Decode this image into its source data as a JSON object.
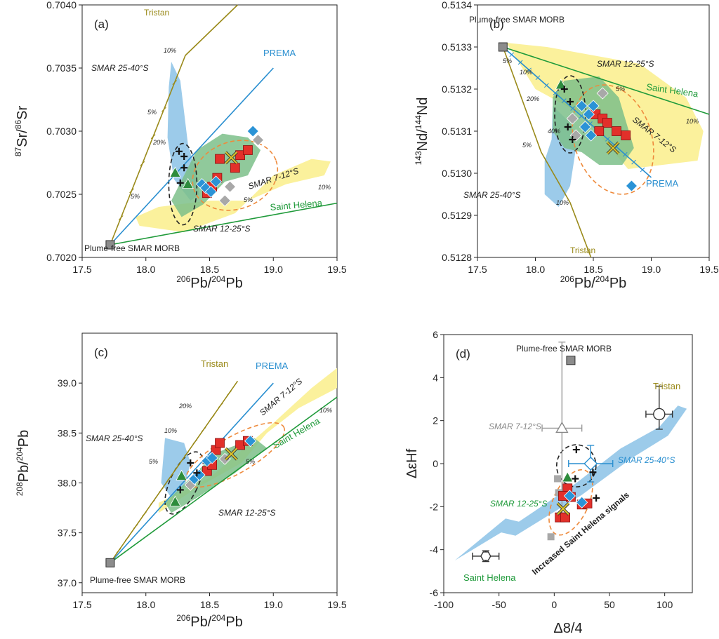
{
  "figure": {
    "colors": {
      "tristan": "#9a8a1a",
      "prema": "#2a8fd0",
      "saint_helena": "#1f9a3a",
      "field_yellow": "#fbf19c",
      "field_blue": "#9ccbea",
      "field_green": "#7dbf8a",
      "red": "#e2302a",
      "diamond": "#2b93d6",
      "triangle": "#2d8c3c",
      "gray": "#a8a8a8",
      "cross": "#d9c22a",
      "morb": "#8c8c8c",
      "dashed_orange": "#ee8a3c"
    }
  },
  "chart_data": [
    {
      "id": "a",
      "type": "scatter",
      "panel_label": "(a)",
      "xlim": [
        17.5,
        19.5
      ],
      "ylim": [
        0.702,
        0.704
      ],
      "xticks": [
        "17.5",
        "18.0",
        "18.5",
        "19.0",
        "19.5"
      ],
      "yticks": [
        "0.7020",
        "0.7025",
        "0.7030",
        "0.7035",
        "0.7040"
      ],
      "xlabel": {
        "sup": "206",
        "base": "Pb/",
        "sup2": "204",
        "base2": "Pb"
      },
      "ylabel": {
        "sup": "87",
        "base": "Sr/",
        "sup2": "86",
        "base2": "Sr"
      },
      "annotations": {
        "tristan": "Tristan",
        "prema": "PREMA",
        "saint_helena": "Saint Helena",
        "smar_7_12": "SMAR 7-12°S",
        "smar_12_25": "SMAR 12-25°S",
        "smar_25_40": "SMAR 25-40°S",
        "morb": "Plume-free SMAR MORB",
        "pct_5": "5%",
        "pct_10": "10%",
        "pct_20": "20%"
      },
      "morb": [
        17.72,
        0.7021
      ],
      "mixing_lines": {
        "tristan": [
          [
            17.72,
            0.7021
          ],
          [
            18.31,
            0.7036
          ],
          [
            18.72,
            0.704
          ]
        ],
        "prema": [
          [
            17.72,
            0.7021
          ],
          [
            19.0,
            0.7035
          ]
        ],
        "saint_helena": [
          [
            17.72,
            0.7021
          ],
          [
            19.5,
            0.70243
          ]
        ]
      },
      "points": {
        "red_squares": [
          [
            18.48,
            0.70251
          ],
          [
            18.52,
            0.70256
          ],
          [
            18.56,
            0.70263
          ],
          [
            18.58,
            0.70278
          ],
          [
            18.7,
            0.70271
          ],
          [
            18.74,
            0.70281
          ],
          [
            18.8,
            0.70285
          ]
        ],
        "blue_diamonds": [
          [
            18.44,
            0.70258
          ],
          [
            18.47,
            0.70255
          ],
          [
            18.51,
            0.70252
          ],
          [
            18.55,
            0.7026
          ],
          [
            18.84,
            0.703
          ]
        ],
        "green_triangles": [
          [
            18.23,
            0.70267
          ],
          [
            18.33,
            0.70258
          ]
        ],
        "gray_diamonds": [
          [
            18.62,
            0.70245
          ],
          [
            18.66,
            0.70256
          ],
          [
            18.88,
            0.70293
          ]
        ],
        "crosses": [
          [
            18.26,
            0.70284
          ],
          [
            18.3,
            0.7028
          ],
          [
            18.27,
            0.70259
          ],
          [
            18.3,
            0.70271
          ]
        ],
        "yellow_cross": [
          [
            18.67,
            0.70279
          ]
        ]
      }
    },
    {
      "id": "b",
      "type": "scatter",
      "panel_label": "(b)",
      "xlim": [
        17.5,
        19.5
      ],
      "ylim": [
        0.5128,
        0.5134
      ],
      "xticks": [
        "17.5",
        "18.0",
        "18.5",
        "19.0",
        "19.5"
      ],
      "yticks": [
        "0.5128",
        "0.5129",
        "0.5130",
        "0.5131",
        "0.5132",
        "0.5133",
        "0.5134"
      ],
      "xlabel": {
        "sup": "206",
        "base": "Pb/",
        "sup2": "204",
        "base2": "Pb"
      },
      "ylabel": {
        "sup": "143",
        "base": "Nd/",
        "sup2": "144",
        "base2": "Nd"
      },
      "annotations": {
        "tristan": "Tristan",
        "prema": "PREMA",
        "saint_helena": "Saint Helena",
        "smar_7_12": "SMAR 7-12°S",
        "smar_12_25": "SMAR 12-25°S",
        "smar_25_40": "SMAR 25-40°S",
        "morb": "Plume-free SMAR MORB",
        "pct_5": "5%",
        "pct_10": "10%",
        "pct_20": "20%",
        "pct_40": "40%"
      },
      "morb": [
        17.72,
        0.5133
      ],
      "mixing_lines": {
        "tristan": [
          [
            17.72,
            0.5133
          ],
          [
            18.05,
            0.51305
          ],
          [
            18.3,
            0.51293
          ],
          [
            18.48,
            0.5128
          ]
        ],
        "prema": [
          [
            17.72,
            0.5133
          ],
          [
            19.0,
            0.51299
          ]
        ],
        "saint_helena": [
          [
            17.72,
            0.5133
          ],
          [
            19.5,
            0.51314
          ]
        ]
      },
      "points": {
        "red_squares": [
          [
            18.52,
            0.51314
          ],
          [
            18.58,
            0.51313
          ],
          [
            18.62,
            0.51312
          ],
          [
            18.55,
            0.5131
          ],
          [
            18.7,
            0.5131
          ],
          [
            18.78,
            0.51309
          ]
        ],
        "blue_diamonds": [
          [
            18.4,
            0.51316
          ],
          [
            18.46,
            0.51314
          ],
          [
            18.5,
            0.51316
          ],
          [
            18.43,
            0.51311
          ],
          [
            18.48,
            0.51309
          ],
          [
            18.83,
            0.51297
          ]
        ],
        "green_triangles": [
          [
            18.22,
            0.51321
          ]
        ],
        "gray_diamonds": [
          [
            18.32,
            0.51313
          ],
          [
            18.35,
            0.51309
          ],
          [
            18.58,
            0.51319
          ]
        ],
        "crosses": [
          [
            18.25,
            0.5132
          ],
          [
            18.3,
            0.51317
          ],
          [
            18.28,
            0.51311
          ],
          [
            18.32,
            0.51308
          ]
        ],
        "yellow_cross": [
          [
            18.67,
            0.51306
          ]
        ]
      }
    },
    {
      "id": "c",
      "type": "scatter",
      "panel_label": "(c)",
      "xlim": [
        17.5,
        19.5
      ],
      "ylim": [
        36.9,
        39.5
      ],
      "xticks": [
        "17.5",
        "18.0",
        "18.5",
        "19.0",
        "19.5"
      ],
      "yticks": [
        "37.0",
        "37.5",
        "38.0",
        "38.5",
        "39.0"
      ],
      "xlabel": {
        "sup": "206",
        "base": "Pb/",
        "sup2": "204",
        "base2": "Pb"
      },
      "ylabel": {
        "sup": "208",
        "base": "Pb/",
        "sup2": "204",
        "base2": "Pb"
      },
      "annotations": {
        "tristan": "Tristan",
        "prema": "PREMA",
        "saint_helena": "Saint Helena",
        "smar_7_12": "SMAR 7-12°S",
        "smar_12_25": "SMAR 12-25°S",
        "smar_25_40": "SMAR 25-40°S",
        "morb": "Plume-free SMAR MORB",
        "pct_5": "5%",
        "pct_10": "10%",
        "pct_20": "20%"
      },
      "morb": [
        17.72,
        37.2
      ],
      "mixing_lines": {
        "tristan": [
          [
            17.72,
            37.2
          ],
          [
            18.72,
            39.02
          ]
        ],
        "prema": [
          [
            17.72,
            37.2
          ],
          [
            19.0,
            39.0
          ]
        ],
        "saint_helena": [
          [
            17.72,
            37.2
          ],
          [
            19.5,
            38.86
          ]
        ]
      },
      "points": {
        "red_squares": [
          [
            18.48,
            38.12
          ],
          [
            18.52,
            38.18
          ],
          [
            18.55,
            38.33
          ],
          [
            18.58,
            38.4
          ],
          [
            18.74,
            38.38
          ],
          [
            18.8,
            38.42
          ]
        ],
        "blue_diamonds": [
          [
            18.38,
            38.04
          ],
          [
            18.42,
            38.08
          ],
          [
            18.48,
            38.22
          ],
          [
            18.52,
            38.25
          ],
          [
            18.82,
            38.42
          ]
        ],
        "green_triangles": [
          [
            18.23,
            37.81
          ],
          [
            18.28,
            38.07
          ]
        ],
        "gray_diamonds": [
          [
            18.35,
            37.98
          ],
          [
            18.62,
            38.24
          ]
        ],
        "crosses": [
          [
            18.27,
            37.93
          ],
          [
            18.35,
            38.2
          ],
          [
            18.4,
            38.1
          ]
        ],
        "yellow_cross": [
          [
            18.67,
            38.29
          ]
        ]
      }
    },
    {
      "id": "d",
      "type": "scatter",
      "panel_label": "(d)",
      "xlim": [
        -100,
        125
      ],
      "ylim": [
        -6,
        6
      ],
      "xticks": [
        "-100",
        "-50",
        "0",
        "50",
        "100"
      ],
      "yticks": [
        "-6",
        "-4",
        "-2",
        "0",
        "2",
        "4",
        "6"
      ],
      "xlabel": "Δ8/4",
      "ylabel": "ΔεHf",
      "annotations": {
        "tristan": "Tristan",
        "saint_helena": "Saint Helena",
        "smar_7_12": "SMAR 7-12°S",
        "smar_12_25": "SMAR 12-25°S",
        "smar_25_40": "SMAR 25-40°S",
        "morb": "Plume-free SMAR MORB",
        "signals": "Increased Saint Helena signals"
      },
      "endmembers": {
        "tristan": {
          "x": 95,
          "y": 2.3,
          "xerr": 12,
          "yerr": [
            1.3,
            0.7
          ]
        },
        "saint_helena": {
          "x": -62,
          "y": -4.3,
          "xerr": 12,
          "yerr": 0.25
        },
        "smar_7_12": {
          "x": 7,
          "y": 1.65,
          "xerr": 18,
          "yerr": 4.0
        },
        "smar_25_40": {
          "x": 33,
          "y": 0.0,
          "xerr": 20,
          "yerr": 0.85
        },
        "morb": {
          "x": 15,
          "y": 4.8
        }
      },
      "points": {
        "red_squares": [
          [
            12,
            -1.15
          ],
          [
            15,
            -1.55
          ],
          [
            8,
            -1.5
          ],
          [
            5,
            -2.5
          ],
          [
            10,
            -2.5
          ],
          [
            25,
            -1.9
          ],
          [
            30,
            -1.85
          ]
        ],
        "blue_diamonds": [
          [
            14,
            -1.5
          ],
          [
            25,
            -1.8
          ]
        ],
        "green_triangles": [
          [
            12,
            -0.65
          ]
        ],
        "gray": [
          [
            3,
            -0.7
          ],
          [
            4,
            -1.35
          ],
          [
            -3,
            -3.4
          ]
        ],
        "crosses": [
          [
            20,
            0.65
          ],
          [
            19,
            -0.7
          ],
          [
            35,
            -0.4
          ],
          [
            38,
            -1.6
          ]
        ],
        "yellow_cross": [
          [
            8,
            -2.1
          ]
        ]
      }
    }
  ]
}
